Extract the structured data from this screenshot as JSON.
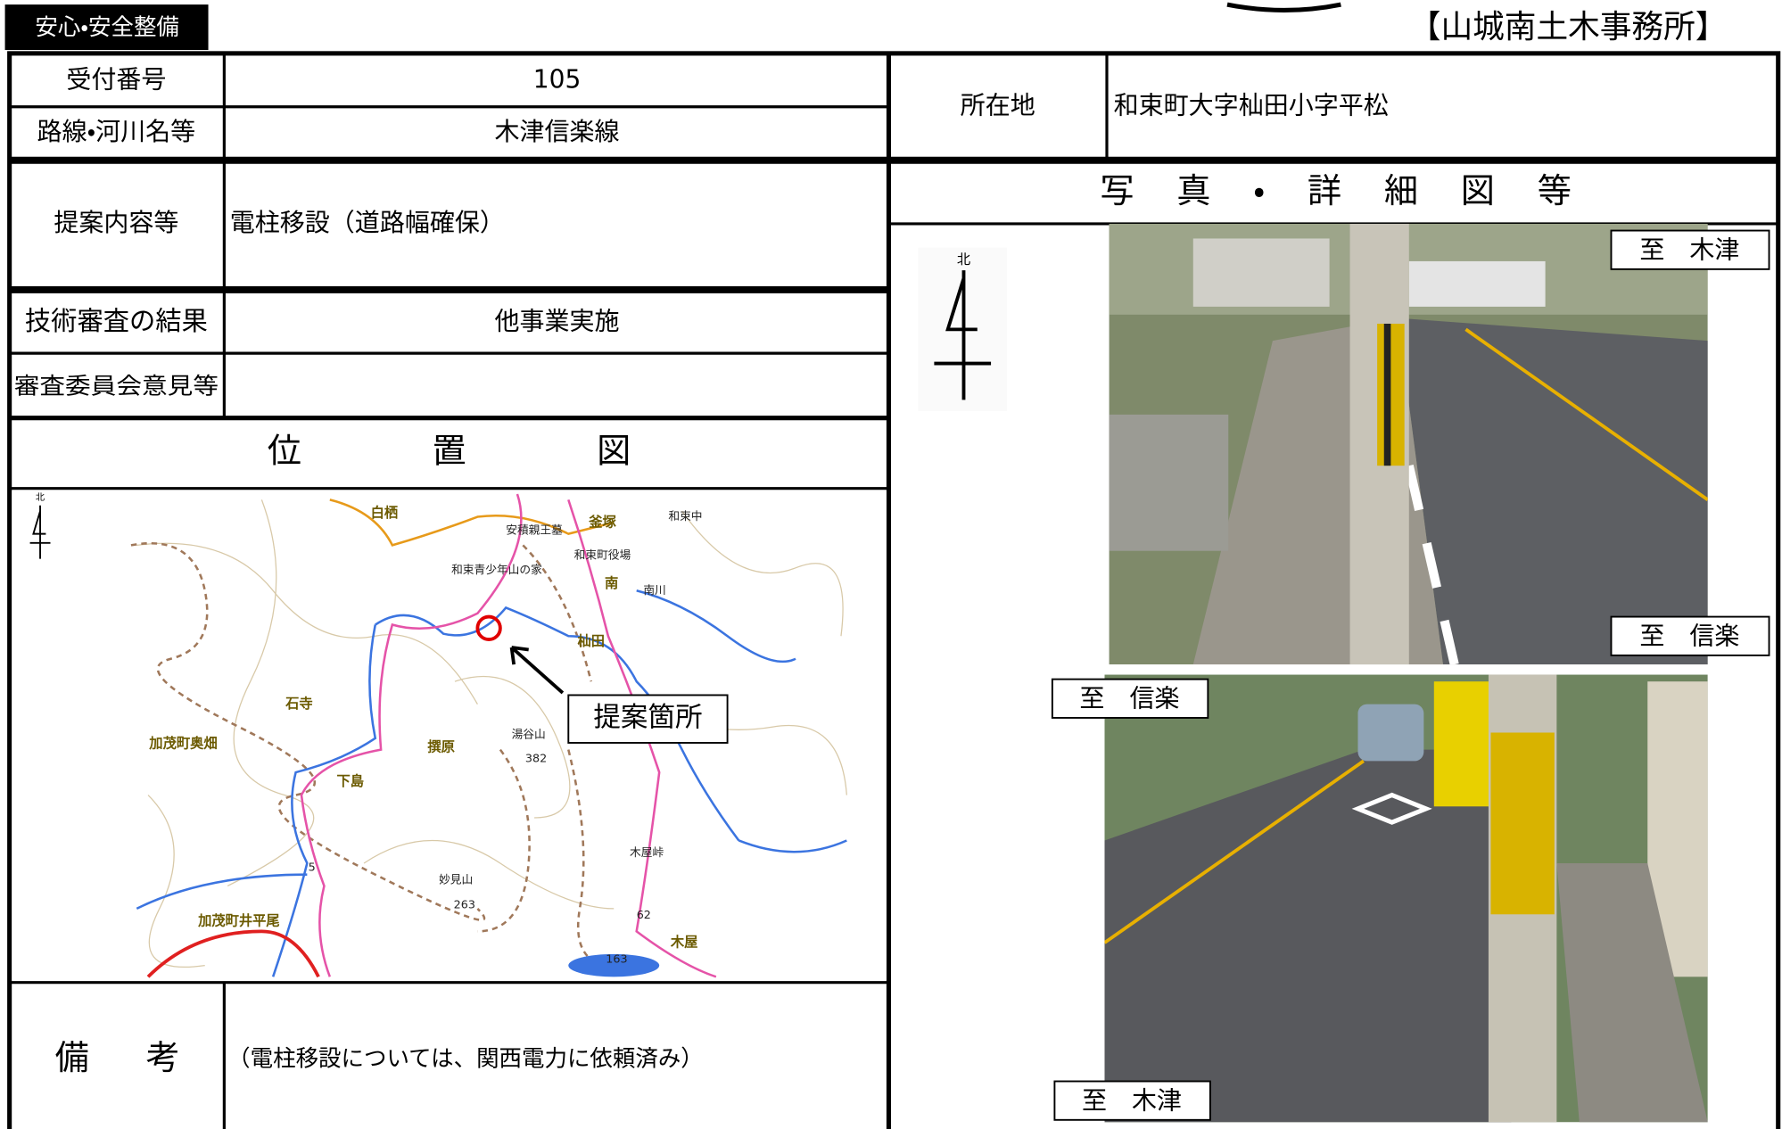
{
  "header": {
    "tag": "安心・安全整備",
    "office": "【山城南土木事務所】"
  },
  "table": {
    "reception_number": {
      "label": "受付番号",
      "value": "105"
    },
    "route": {
      "label": "路線・河川名等",
      "value": "木津信楽線"
    },
    "location": {
      "label": "所在地",
      "value": "和束町大字杣田小字平松"
    },
    "proposal": {
      "label": "提案内容等",
      "value": "電柱移設（道路幅確保）"
    },
    "review": {
      "label": "技術審査の結果",
      "value": "他事業実施"
    },
    "committee": {
      "label": "審査委員会意見等"
    },
    "remarks": {
      "label": "備考",
      "value": "（電柱移設については、関西電力に依頼済み）"
    }
  },
  "map": {
    "title": "位置図",
    "north": "北",
    "callout": "提案箇所",
    "labels": [
      "白栖",
      "安積親王墓",
      "釜塚",
      "和束中",
      "和束町役場",
      "和束青少年山の家",
      "南",
      "南川",
      "杣田",
      "石寺",
      "加茂町奥畑",
      "撰原",
      "湯谷山",
      "382",
      "下島",
      "木屋峠",
      "妙見山",
      "263",
      "加茂町井平尾",
      "木屋",
      "5",
      "62",
      "163"
    ]
  },
  "photos": {
    "title": "写真・詳細図等",
    "north": "北",
    "photo1": {
      "top": "至　木津",
      "bottom": "至　信楽"
    },
    "photo2": {
      "top": "至　信楽",
      "bottom": "至　木津"
    }
  }
}
